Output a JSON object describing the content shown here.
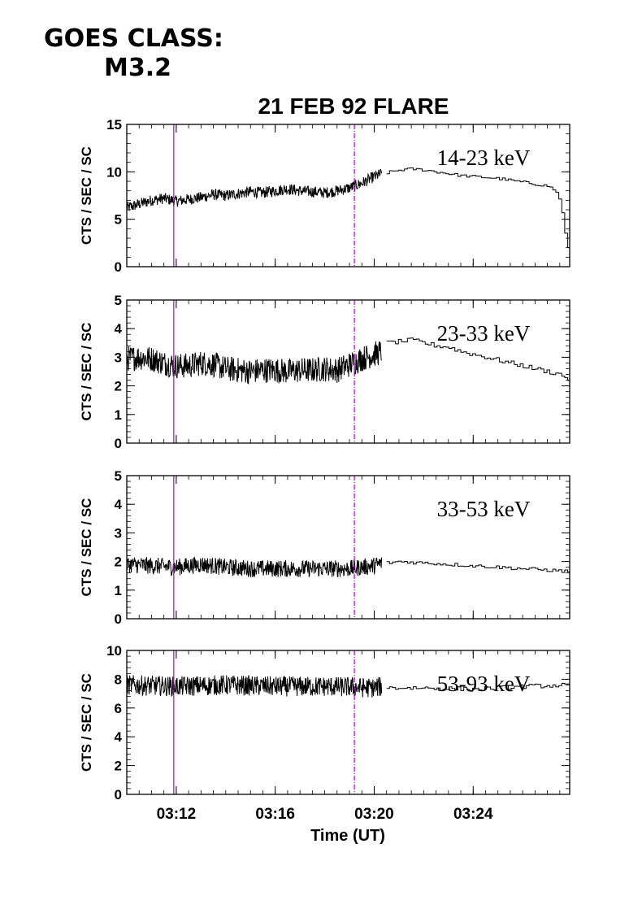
{
  "header": {
    "goes_label": "GOES CLASS:",
    "goes_class": "M3.2"
  },
  "chart_data": {
    "type": "line",
    "title": "21 FEB 92 FLARE",
    "xlabel": "Time (UT)",
    "x_unit": "minutes after 03:00 UT",
    "xlim": [
      10.0,
      27.9
    ],
    "x_tick_labels": [
      {
        "x": 12,
        "label": "03:12"
      },
      {
        "x": 16,
        "label": "03:16"
      },
      {
        "x": 20,
        "label": "03:20"
      },
      {
        "x": 24,
        "label": "03:24"
      }
    ],
    "markers": [
      {
        "x": 11.9,
        "color": "#b000c8",
        "style": "solid"
      },
      {
        "x": 19.2,
        "color": "#b000c8",
        "style": "dash-dot"
      }
    ],
    "panels": [
      {
        "ylabel": "CTS / SEC / SC",
        "band": "14-23 keV",
        "ylim": [
          0,
          15
        ],
        "yticks": [
          0,
          5,
          10,
          15
        ],
        "series": [
          {
            "x": [
              10.0,
              10.5,
              11.0,
              11.5,
              12.0,
              12.5,
              13.0,
              13.5,
              14.0,
              14.5,
              15.0,
              15.5,
              16.0,
              16.5,
              17.0,
              17.5,
              18.0,
              18.5,
              19.0,
              19.5,
              20.0,
              20.3
            ],
            "y": [
              6.2,
              6.6,
              7.0,
              7.2,
              6.9,
              7.1,
              7.3,
              7.6,
              7.5,
              7.7,
              7.9,
              7.8,
              8.0,
              8.2,
              8.0,
              7.9,
              7.8,
              8.0,
              8.3,
              8.8,
              9.5,
              9.8
            ],
            "noise": 0.6
          },
          {
            "x": [
              20.5,
              21.0,
              21.5,
              22.0,
              22.5,
              23.0,
              23.5,
              24.0,
              24.5,
              25.0,
              25.5,
              26.0,
              26.5,
              27.0,
              27.3,
              27.5,
              27.7,
              27.9
            ],
            "y": [
              9.9,
              10.2,
              10.3,
              10.2,
              10.0,
              9.8,
              9.6,
              9.5,
              9.4,
              9.3,
              9.1,
              8.9,
              8.7,
              8.5,
              8.0,
              7.0,
              3.5,
              0.8
            ],
            "noise": 0.15
          }
        ]
      },
      {
        "ylabel": "CTS / SEC / SC",
        "band": "23-33 keV",
        "ylim": [
          0,
          5
        ],
        "yticks": [
          0,
          1,
          2,
          3,
          4,
          5
        ],
        "series": [
          {
            "x": [
              10.0,
              10.5,
              11.0,
              11.5,
              12.0,
              12.5,
              13.0,
              13.5,
              14.0,
              14.5,
              15.0,
              15.5,
              16.0,
              16.5,
              17.0,
              17.5,
              18.0,
              18.5,
              19.0,
              19.5,
              20.0,
              20.3
            ],
            "y": [
              2.95,
              3.0,
              2.95,
              2.8,
              2.7,
              2.7,
              2.8,
              2.75,
              2.6,
              2.55,
              2.5,
              2.55,
              2.55,
              2.5,
              2.55,
              2.55,
              2.6,
              2.55,
              2.75,
              2.95,
              3.1,
              3.2
            ],
            "noise": 0.45
          },
          {
            "x": [
              20.5,
              21.0,
              21.5,
              22.0,
              22.5,
              23.0,
              23.5,
              24.0,
              24.5,
              25.0,
              25.5,
              26.0,
              26.5,
              27.0,
              27.5,
              27.9
            ],
            "y": [
              3.5,
              3.55,
              3.6,
              3.5,
              3.4,
              3.35,
              3.2,
              3.1,
              3.0,
              2.9,
              2.8,
              2.7,
              2.6,
              2.5,
              2.4,
              2.2
            ],
            "noise": 0.08
          }
        ]
      },
      {
        "ylabel": "CTS / SEC / SC",
        "band": "33-53 keV",
        "ylim": [
          0,
          5
        ],
        "yticks": [
          0,
          1,
          2,
          3,
          4,
          5
        ],
        "series": [
          {
            "x": [
              10.0,
              11.0,
              12.0,
              13.0,
              14.0,
              15.0,
              16.0,
              17.0,
              18.0,
              19.0,
              20.0,
              20.3
            ],
            "y": [
              1.9,
              1.85,
              1.8,
              1.9,
              1.8,
              1.75,
              1.75,
              1.75,
              1.75,
              1.75,
              1.85,
              1.95
            ],
            "noise": 0.3
          },
          {
            "x": [
              20.5,
              21.0,
              22.0,
              23.0,
              24.0,
              25.0,
              26.0,
              27.0,
              27.9
            ],
            "y": [
              1.95,
              2.0,
              1.95,
              1.9,
              1.85,
              1.8,
              1.75,
              1.7,
              1.65
            ],
            "noise": 0.06
          }
        ]
      },
      {
        "ylabel": "CTS / SEC / SC",
        "band": "53-93 keV",
        "ylim": [
          0,
          10
        ],
        "yticks": [
          0,
          2,
          4,
          6,
          8,
          10
        ],
        "series": [
          {
            "x": [
              10.0,
              12.0,
              14.0,
              16.0,
              18.0,
              20.0,
              20.3
            ],
            "y": [
              7.6,
              7.5,
              7.6,
              7.5,
              7.5,
              7.4,
              7.5
            ],
            "noise": 0.7
          },
          {
            "x": [
              20.5,
              22.0,
              24.0,
              26.0,
              27.9
            ],
            "y": [
              7.4,
              7.4,
              7.3,
              7.5,
              7.6
            ],
            "noise": 0.15
          }
        ]
      }
    ]
  }
}
